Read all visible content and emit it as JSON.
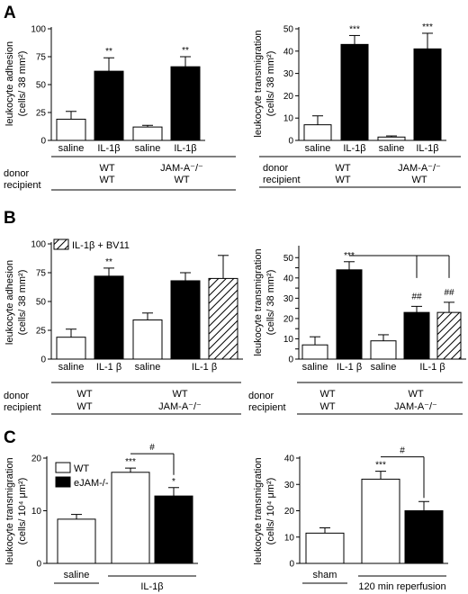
{
  "panel_letters": [
    "A",
    "B",
    "C"
  ],
  "chart_data": [
    {
      "id": "A1",
      "type": "bar",
      "categories": [
        "saline",
        "IL-1β",
        "saline",
        "IL-1β"
      ],
      "values": [
        19,
        62,
        12,
        66
      ],
      "errors": [
        7,
        12,
        1.5,
        9
      ],
      "fills": [
        "white",
        "black",
        "white",
        "black"
      ],
      "annotations": [
        "",
        "**",
        "",
        "**"
      ],
      "ylabel": "leukocyte adhesion",
      "yunit": "(cells/ 38 mm²)",
      "ylim": [
        0,
        100
      ],
      "yticks": [
        0,
        25,
        50,
        75,
        100
      ],
      "conditions": {
        "row_labels": [
          "donor",
          "recipient"
        ],
        "groups": [
          {
            "donor": "WT",
            "recipient": "WT"
          },
          {
            "donor": "JAM-A⁻/⁻",
            "recipient": "WT"
          }
        ]
      }
    },
    {
      "id": "A2",
      "type": "bar",
      "categories": [
        "saline",
        "IL-1β",
        "saline",
        "IL-1β"
      ],
      "values": [
        7,
        43,
        1.5,
        41
      ],
      "errors": [
        4,
        4,
        0.5,
        7
      ],
      "fills": [
        "white",
        "black",
        "white",
        "black"
      ],
      "annotations": [
        "",
        "***",
        "",
        "***"
      ],
      "ylabel": "leukocyte transmigration",
      "yunit": "(cells/ 38 mm²)",
      "ylim": [
        0,
        50
      ],
      "yticks": [
        0,
        10,
        20,
        30,
        40,
        50
      ],
      "conditions": {
        "row_labels": [
          "donor",
          "recipient"
        ],
        "groups": [
          {
            "donor": "WT",
            "recipient": "WT"
          },
          {
            "donor": "JAM-A⁻/⁻",
            "recipient": "WT"
          }
        ]
      }
    },
    {
      "id": "B1",
      "type": "bar",
      "categories": [
        "saline",
        "IL-1 β",
        "saline",
        "IL-1 β",
        ""
      ],
      "values": [
        19,
        72,
        34,
        68,
        70
      ],
      "errors": [
        7,
        7,
        6,
        7,
        20
      ],
      "fills": [
        "white",
        "black",
        "white",
        "black",
        "hatch"
      ],
      "annotations": [
        "",
        "**",
        "",
        "",
        ""
      ],
      "legend": [
        {
          "fill": "hatch",
          "label": "IL-1β + BV11"
        }
      ],
      "ylabel": "leukocyte adhesion",
      "yunit": "(cells/ 38 mm²)",
      "ylim": [
        0,
        100
      ],
      "yticks": [
        0,
        25,
        50,
        75,
        100
      ],
      "conditions": {
        "row_labels": [
          "donor",
          "recipient"
        ],
        "groups": [
          {
            "donor": "WT",
            "recipient": "WT"
          },
          {
            "donor": "WT",
            "recipient": "JAM-A⁻/⁻"
          }
        ]
      }
    },
    {
      "id": "B2",
      "type": "bar",
      "categories": [
        "saline",
        "IL-1 β",
        "saline",
        "IL-1 β",
        ""
      ],
      "values": [
        7,
        44,
        9,
        23,
        23
      ],
      "errors": [
        4,
        4,
        3,
        3,
        5
      ],
      "fills": [
        "white",
        "black",
        "white",
        "black",
        "hatch"
      ],
      "annotations": [
        "",
        "***",
        "",
        "##",
        "##"
      ],
      "ylabel": "leukocyte transmigration",
      "yunit": "(cells/ 38 mm²)",
      "ylim": [
        0,
        55
      ],
      "yticks": [
        0,
        5,
        10,
        15,
        20,
        25,
        30,
        35,
        40,
        45,
        50
      ],
      "conditions": {
        "row_labels": [
          "donor",
          "recipient"
        ],
        "groups": [
          {
            "donor": "WT",
            "recipient": "WT"
          },
          {
            "donor": "WT",
            "recipient": "JAM-A⁻/⁻"
          }
        ]
      }
    },
    {
      "id": "C1",
      "type": "bar",
      "categories": [
        "saline",
        "",
        ""
      ],
      "group_labels": [
        "saline",
        "IL-1β"
      ],
      "series": [
        {
          "name": "WT",
          "fill": "white"
        },
        {
          "name": "eJAM-/-",
          "fill": "black"
        }
      ],
      "values": [
        8.4,
        17.3,
        12.8
      ],
      "errors": [
        0.9,
        0.8,
        1.6
      ],
      "fills": [
        "white",
        "white",
        "black"
      ],
      "annotations": [
        "***",
        "*",
        "#"
      ],
      "ylabel": "leukocyte transmigration",
      "yunit": "(cells/ 10⁴ μm²)",
      "ylim": [
        0,
        20
      ],
      "yticks": [
        0,
        10,
        20
      ]
    },
    {
      "id": "C2",
      "type": "bar",
      "categories": [
        "",
        "",
        ""
      ],
      "group_labels": [
        "sham",
        "120 min reperfusion"
      ],
      "values": [
        11.5,
        32,
        20
      ],
      "errors": [
        2,
        3,
        3.5
      ],
      "fills": [
        "white",
        "white",
        "black"
      ],
      "annotations": [
        "***",
        "#"
      ],
      "ylabel": "leukocyte transmigration",
      "yunit": "(cells/ 10⁴ μm²)",
      "ylim": [
        0,
        40
      ],
      "yticks": [
        0,
        10,
        20,
        30,
        40
      ]
    }
  ]
}
